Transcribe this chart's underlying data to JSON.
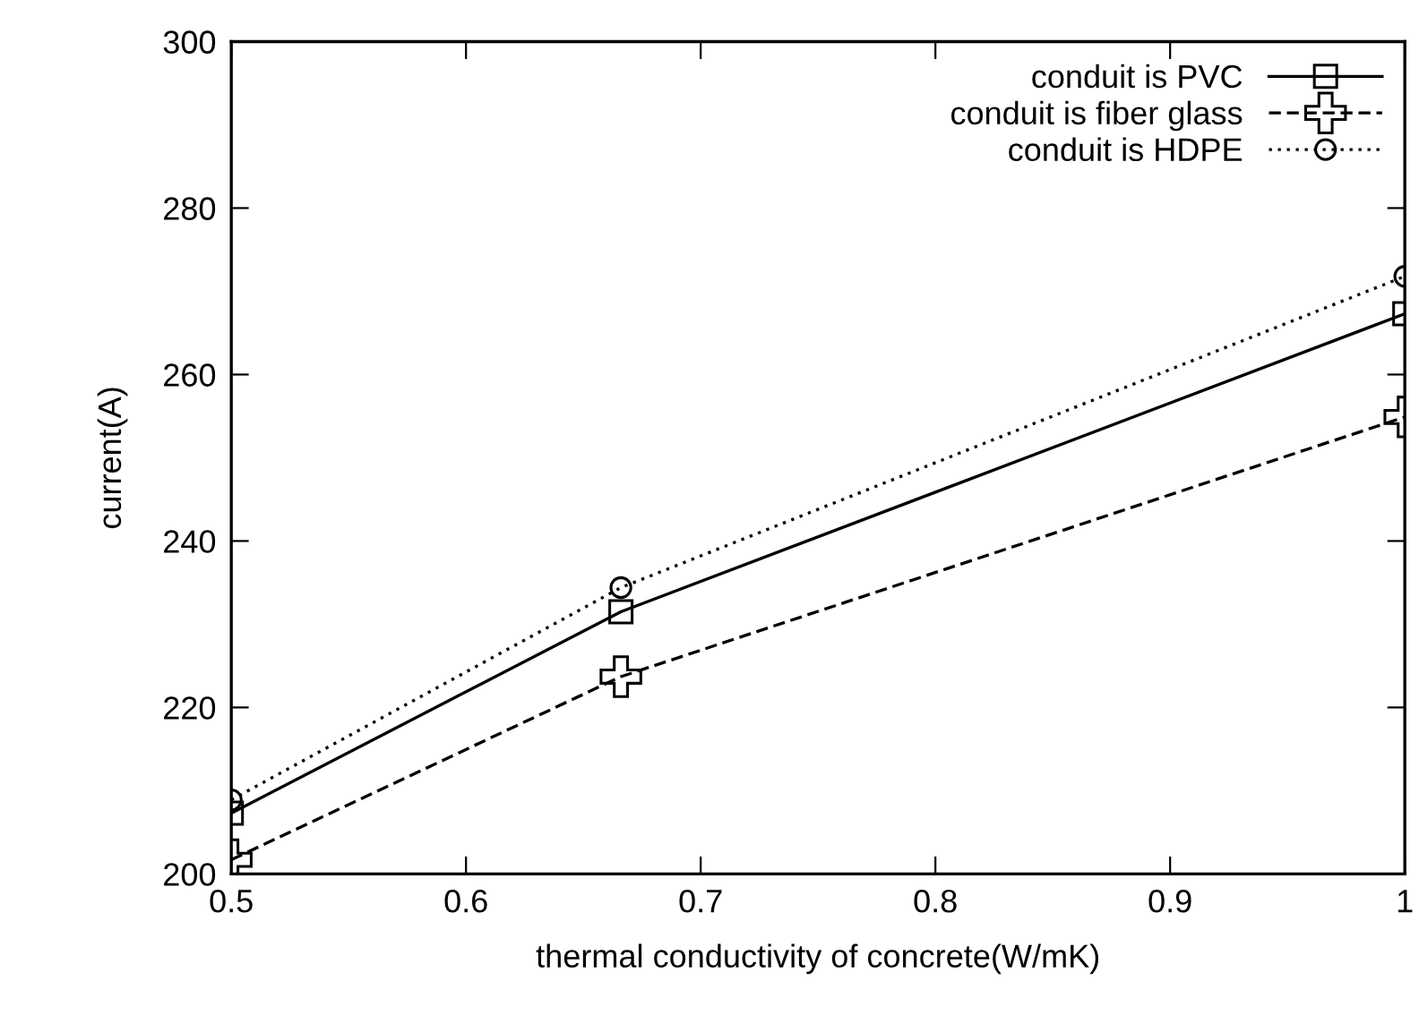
{
  "chart_data": {
    "type": "line",
    "xlabel": "thermal conductivity of concrete(W/mK)",
    "ylabel": "current(A)",
    "x": [
      0.5,
      0.666,
      1.0
    ],
    "series": [
      {
        "name": "conduit is PVC",
        "color": "#000000",
        "marker": "square",
        "line_style": "solid",
        "values": [
          207.3,
          231.5,
          267.3
        ]
      },
      {
        "name": "conduit is fiber glass",
        "color": "#000000",
        "marker": "cross",
        "line_style": "dashed",
        "values": [
          201.7,
          223.7,
          254.9
        ]
      },
      {
        "name": "conduit is HDPE",
        "color": "#000000",
        "marker": "circle",
        "line_style": "dotted",
        "values": [
          208.9,
          234.4,
          271.8
        ]
      }
    ],
    "xlim": [
      0.5,
      1.0
    ],
    "xticks": [
      0.5,
      0.6,
      0.7,
      0.8,
      0.9,
      1
    ],
    "ylim": [
      200,
      300
    ],
    "yticks": [
      200,
      220,
      240,
      260,
      280,
      300
    ],
    "grid": false,
    "legend": "top right"
  }
}
